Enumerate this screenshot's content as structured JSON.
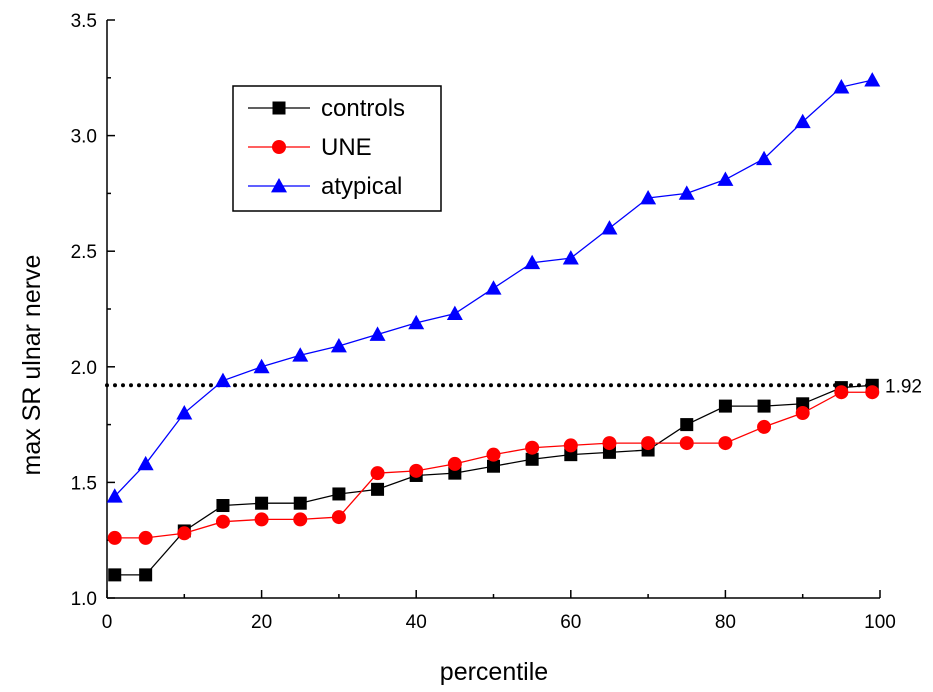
{
  "chart_data": {
    "type": "line",
    "title": "",
    "xlabel": "percentile",
    "ylabel": "max SR ulnar nerve",
    "xlim": [
      0,
      100
    ],
    "ylim": [
      1.0,
      3.5
    ],
    "xticks": [
      0,
      20,
      40,
      60,
      80,
      100
    ],
    "yticks": [
      1.0,
      1.5,
      2.0,
      2.5,
      3.0,
      3.5
    ],
    "xtick_labels": [
      "0",
      "20",
      "40",
      "60",
      "80",
      "100"
    ],
    "ytick_labels": [
      "1.0",
      "1.5",
      "2.0",
      "2.5",
      "3.0",
      "3.5"
    ],
    "grid": false,
    "legend_position": "top-left",
    "reference_line": {
      "y": 1.92,
      "label": "1.92",
      "style": "dotted",
      "color": "#000000"
    },
    "x": [
      1,
      5,
      10,
      15,
      20,
      25,
      30,
      35,
      40,
      45,
      50,
      55,
      60,
      65,
      70,
      75,
      80,
      85,
      90,
      95,
      99
    ],
    "series": [
      {
        "name": "controls",
        "color": "#000000",
        "marker": "square",
        "values": [
          1.1,
          1.1,
          1.29,
          1.4,
          1.41,
          1.41,
          1.45,
          1.47,
          1.53,
          1.54,
          1.57,
          1.6,
          1.62,
          1.63,
          1.64,
          1.75,
          1.83,
          1.83,
          1.84,
          1.91,
          1.92
        ]
      },
      {
        "name": "UNE",
        "color": "#ff0000",
        "marker": "circle",
        "values": [
          1.26,
          1.26,
          1.28,
          1.33,
          1.34,
          1.34,
          1.35,
          1.54,
          1.55,
          1.58,
          1.62,
          1.65,
          1.66,
          1.67,
          1.67,
          1.67,
          1.67,
          1.74,
          1.8,
          1.89,
          1.89
        ]
      },
      {
        "name": "atypical",
        "color": "#0000ff",
        "marker": "triangle",
        "values": [
          1.44,
          1.58,
          1.8,
          1.94,
          2.0,
          2.05,
          2.09,
          2.14,
          2.19,
          2.23,
          2.34,
          2.45,
          2.47,
          2.6,
          2.73,
          2.75,
          2.81,
          2.9,
          3.06,
          3.21,
          3.24
        ]
      }
    ]
  }
}
